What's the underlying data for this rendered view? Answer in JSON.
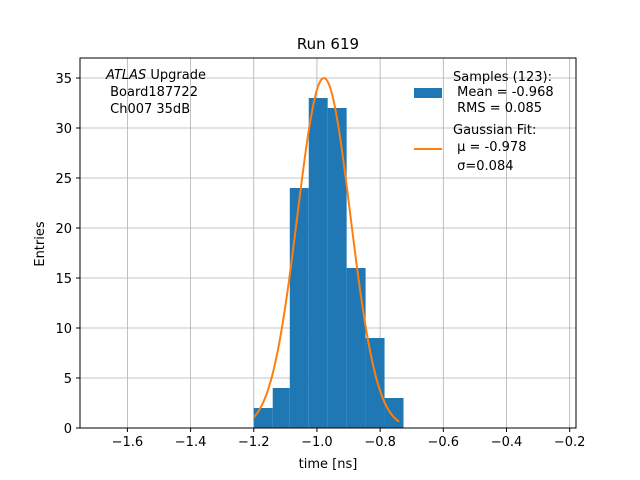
{
  "chart_data": {
    "type": "histogram",
    "title": "Run 619",
    "xlabel": "time [ns]",
    "ylabel": "Entries",
    "xlim": [
      -1.75,
      -0.18
    ],
    "ylim": [
      0,
      37
    ],
    "xticks": [
      -1.6,
      -1.4,
      -1.2,
      -1.0,
      -0.8,
      -0.6,
      -0.4,
      -0.2
    ],
    "xtick_labels": [
      "−1.6",
      "−1.4",
      "−1.2",
      "−1.0",
      "−0.8",
      "−0.6",
      "−0.4",
      "−0.2"
    ],
    "yticks": [
      0,
      5,
      10,
      15,
      20,
      25,
      30,
      35
    ],
    "ytick_labels": [
      "0",
      "5",
      "10",
      "15",
      "20",
      "25",
      "30",
      "35"
    ],
    "grid": true,
    "bin_edges": [
      -1.2,
      -1.14,
      -1.086,
      -1.026,
      -0.966,
      -0.906,
      -0.846,
      -0.786,
      -0.726
    ],
    "counts": [
      2,
      4,
      24,
      33,
      32,
      16,
      9,
      3
    ],
    "bar_color": "#1f77b4",
    "fit": {
      "type": "gaussian",
      "color": "#ff7f0e",
      "mu": -0.978,
      "sigma": 0.084,
      "amplitude": 35,
      "x_range": [
        -1.2,
        -0.74
      ]
    },
    "legend": {
      "placement": "upper right",
      "samples_lines": [
        "Samples (123):",
        " Mean = -0.968",
        " RMS = 0.085"
      ],
      "fit_lines": [
        "Gaussian Fit:",
        " μ = -0.978",
        " σ=0.084"
      ]
    },
    "annotation": {
      "placement": "upper left",
      "line1_italic": "ATLAS",
      "line1_rest": " Upgrade",
      "line2": " Board187722",
      "line3": " Ch007 35dB"
    }
  }
}
